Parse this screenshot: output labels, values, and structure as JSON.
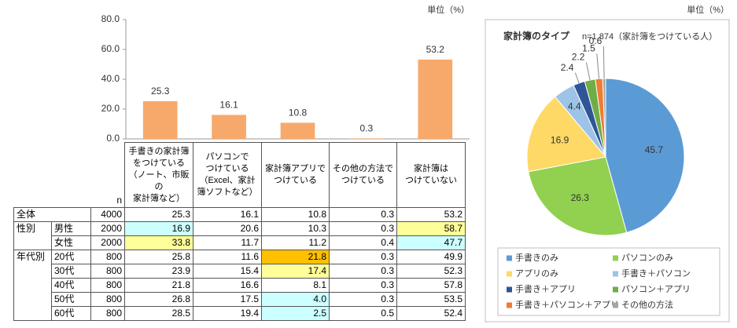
{
  "chart_data": [
    {
      "type": "bar",
      "unit_label": "単位（%）",
      "categories": [
        "手書きの家計簿\nをつけている\n（ノート、市販の\n家計簿など）",
        "パソコンで\nつけている\n（Excel、家計\n簿ソフトなど）",
        "家計簿アプリで\nつけている",
        "その他の方法で\nつけている",
        "家計簿は\nつけていない"
      ],
      "values": [
        25.3,
        16.1,
        10.8,
        0.3,
        53.2
      ],
      "color": "#f7a96c",
      "ylim": [
        0,
        80
      ],
      "yticks": [
        {
          "value": 0,
          "label": "0.0"
        },
        {
          "value": 20,
          "label": "20.0"
        },
        {
          "value": 40,
          "label": "40.0"
        },
        {
          "value": 60,
          "label": "60.0"
        },
        {
          "value": 80,
          "label": "80.0"
        }
      ],
      "grid": false
    },
    {
      "type": "pie",
      "unit_label": "単位（%）",
      "title": "家計簿のタイプ",
      "subtitle": "n=1,874（家計簿をつけている人）",
      "categories": [
        "手書きのみ",
        "パソコンのみ",
        "アプリのみ",
        "手書き＋パソコン",
        "手書き＋アプリ",
        "パソコン＋アプリ",
        "手書き＋パソコン＋アプリ",
        "その他の方法"
      ],
      "values": [
        45.7,
        26.3,
        16.9,
        4.4,
        2.4,
        2.2,
        1.5,
        0.6
      ],
      "colors": [
        "#5b9bd5",
        "#92d050",
        "#ffd966",
        "#9dc3e6",
        "#2f5597",
        "#70ad47",
        "#ed7d31",
        "#a5a5a5"
      ],
      "legend": "bottom"
    }
  ],
  "table": {
    "n_header": "n",
    "sections": [
      {
        "label": "全体",
        "n": 4000,
        "cells": [
          "25.3",
          "16.1",
          "10.8",
          "0.3",
          "53.2"
        ],
        "fills": [
          null,
          null,
          null,
          null,
          null
        ]
      },
      {
        "label": "性別",
        "rows": [
          {
            "label": "男性",
            "n": 2000,
            "cells": [
              "16.9",
              "20.6",
              "10.3",
              "0.3",
              "58.7"
            ],
            "fills": [
              "#ccffff",
              null,
              null,
              null,
              "#ffff99"
            ]
          },
          {
            "label": "女性",
            "n": 2000,
            "cells": [
              "33.8",
              "11.7",
              "11.2",
              "0.4",
              "47.7"
            ],
            "fills": [
              "#ffff99",
              null,
              null,
              null,
              "#ccffff"
            ]
          }
        ]
      },
      {
        "label": "年代別",
        "rows": [
          {
            "label": "20代",
            "n": 800,
            "cells": [
              "25.8",
              "11.6",
              "21.8",
              "0.3",
              "49.9"
            ],
            "fills": [
              null,
              null,
              "#ffc000",
              null,
              null
            ]
          },
          {
            "label": "30代",
            "n": 800,
            "cells": [
              "23.9",
              "15.4",
              "17.4",
              "0.3",
              "52.3"
            ],
            "fills": [
              null,
              null,
              "#ffff99",
              null,
              null
            ]
          },
          {
            "label": "40代",
            "n": 800,
            "cells": [
              "21.8",
              "16.6",
              "8.1",
              "0.3",
              "57.8"
            ],
            "fills": [
              null,
              null,
              null,
              null,
              null
            ]
          },
          {
            "label": "50代",
            "n": 800,
            "cells": [
              "26.8",
              "17.5",
              "4.0",
              "0.3",
              "53.5"
            ],
            "fills": [
              null,
              null,
              "#ccffff",
              null,
              null
            ]
          },
          {
            "label": "60代",
            "n": 800,
            "cells": [
              "28.5",
              "19.4",
              "2.5",
              "0.5",
              "52.4"
            ],
            "fills": [
              null,
              null,
              "#ccffff",
              null,
              null
            ]
          }
        ]
      }
    ]
  }
}
